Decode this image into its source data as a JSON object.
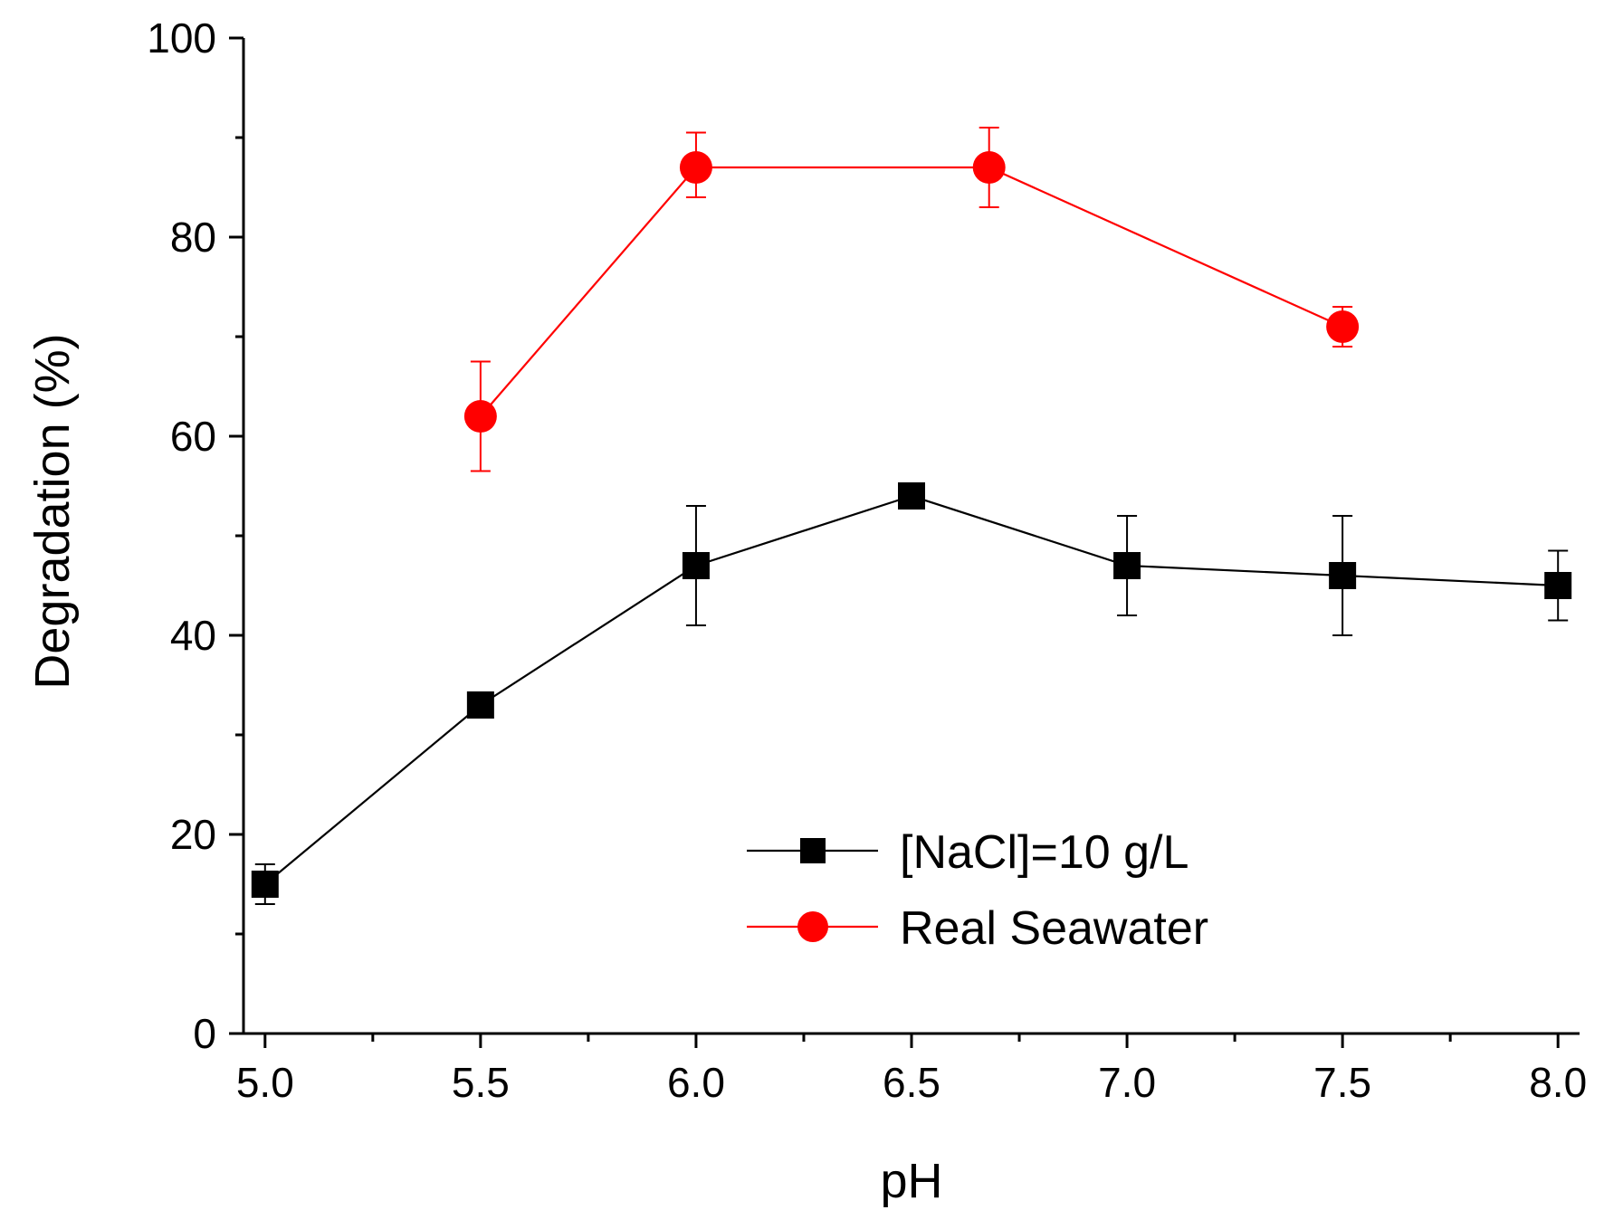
{
  "chart_data": {
    "type": "line",
    "title": "",
    "xlabel": "pH",
    "ylabel": "Degradation (%)",
    "xlim": [
      4.95,
      8.05
    ],
    "ylim": [
      0,
      100
    ],
    "xticks": [
      5.0,
      5.5,
      6.0,
      6.5,
      7.0,
      7.5,
      8.0
    ],
    "xtick_labels": [
      "5.0",
      "5.5",
      "6.0",
      "6.5",
      "7.0",
      "7.5",
      "8.0"
    ],
    "xminor": [
      5.25,
      5.75,
      6.25,
      6.75,
      7.25,
      7.75
    ],
    "yticks": [
      0,
      20,
      40,
      60,
      80,
      100
    ],
    "ytick_labels": [
      "0",
      "20",
      "40",
      "60",
      "80",
      "100"
    ],
    "yminor": [
      10,
      30,
      50,
      70,
      90
    ],
    "grid": false,
    "legend_position": "bottom-right",
    "series": [
      {
        "name": "[NaCl]=10 g/L",
        "color": "#000000",
        "marker": "square",
        "x": [
          5.0,
          5.5,
          6.0,
          6.5,
          7.0,
          7.5,
          8.0
        ],
        "values": [
          15,
          33,
          47,
          54,
          47,
          46,
          45
        ],
        "err_low": [
          13,
          33,
          41,
          54,
          42,
          40,
          41.5
        ],
        "err_high": [
          17,
          33,
          53,
          54,
          52,
          52,
          48.5
        ]
      },
      {
        "name": "Real Seawater",
        "color": "#ff0000",
        "marker": "circle",
        "x": [
          5.5,
          6.0,
          6.68,
          7.5
        ],
        "values": [
          62,
          87,
          87,
          71
        ],
        "err_low": [
          56.5,
          84,
          83,
          69
        ],
        "err_high": [
          67.5,
          90.5,
          91,
          73
        ]
      }
    ]
  }
}
